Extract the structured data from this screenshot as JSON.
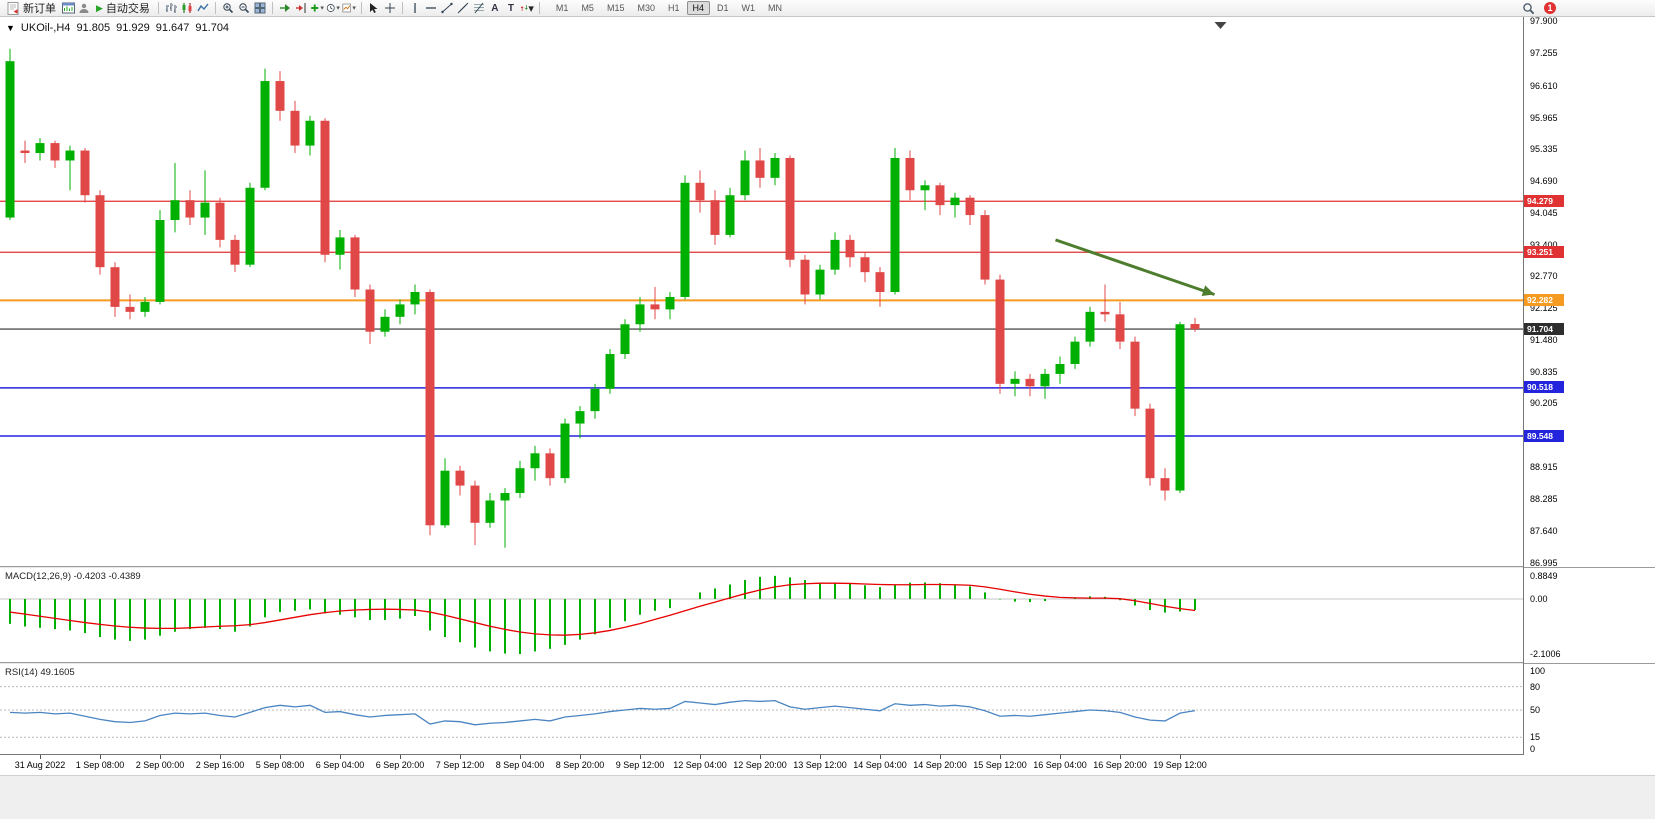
{
  "toolbar": {
    "new_order": "新订单",
    "autotrading": "自动交易",
    "timeframes": [
      "M1",
      "M5",
      "M15",
      "M30",
      "H1",
      "H4",
      "D1",
      "W1",
      "MN"
    ],
    "active_timeframe": "H4",
    "notification_count": "1",
    "text_tool": "A",
    "label_tool": "T"
  },
  "icons": {
    "caret": "▾",
    "title_caret": "▼",
    "autotrading_play": "▶"
  },
  "chart": {
    "symbol_period": "UKOil-,H4",
    "quote": {
      "open": "91.805",
      "high": "91.929",
      "low": "91.647",
      "close": "91.704"
    }
  },
  "colors": {
    "candle_up": "#00b000",
    "candle_down": "#e04848",
    "chart_bg": "#ffffff",
    "arrow": "#4e7d2e"
  },
  "chart_data": {
    "type": "candlestick",
    "symbol": "UKOil-",
    "timeframe": "H4",
    "last_quote": {
      "open": 91.805,
      "high": 91.929,
      "low": 91.647,
      "close": 91.704
    },
    "price_axis": {
      "min": 86.995,
      "max": 97.9,
      "ticks": [
        "97.900",
        "97.255",
        "96.610",
        "95.965",
        "95.335",
        "94.690",
        "94.045",
        "93.400",
        "92.770",
        "92.125",
        "91.480",
        "90.835",
        "90.205",
        "89.560",
        "88.915",
        "88.285",
        "87.640",
        "86.995"
      ]
    },
    "hlines": [
      {
        "price": 94.279,
        "label": "94.279",
        "color": "#e03232",
        "width": 1.3
      },
      {
        "price": 93.251,
        "label": "93.251",
        "color": "#e03232",
        "width": 1.3
      },
      {
        "price": 92.282,
        "label": "92.282",
        "color": "#f59b22",
        "width": 2
      },
      {
        "price": 91.704,
        "label": "91.704",
        "color": "#2e2e2e",
        "width": 1.1,
        "role": "last-price"
      },
      {
        "price": 90.518,
        "label": "90.518",
        "color": "#2424dd",
        "width": 1.5
      },
      {
        "price": 89.548,
        "label": "89.548",
        "color": "#2424dd",
        "width": 1.5
      }
    ],
    "annotation_arrow": {
      "from_bar": 69.7,
      "from_price": 93.5,
      "to_bar": 80.3,
      "to_price": 92.4,
      "color": "#4e7d2e"
    },
    "shift_marker": {
      "bar": 80.7
    },
    "time_axis": {
      "first_bar": 2,
      "bar_step": 4,
      "labels": [
        "31 Aug 2022",
        "1 Sep 08:00",
        "2 Sep 00:00",
        "2 Sep 16:00",
        "5 Sep 08:00",
        "6 Sep 04:00",
        "6 Sep 20:00",
        "7 Sep 12:00",
        "8 Sep 04:00",
        "8 Sep 20:00",
        "9 Sep 12:00",
        "12 Sep 04:00",
        "12 Sep 20:00",
        "13 Sep 12:00",
        "14 Sep 04:00",
        "14 Sep 20:00",
        "15 Sep 12:00",
        "16 Sep 04:00",
        "16 Sep 20:00",
        "19 Sep 12:00"
      ]
    },
    "candles": [
      [
        93.95,
        97.35,
        93.9,
        97.1
      ],
      [
        95.3,
        95.5,
        95.05,
        95.25
      ],
      [
        95.25,
        95.55,
        95.1,
        95.45
      ],
      [
        95.45,
        95.5,
        94.95,
        95.1
      ],
      [
        95.1,
        95.4,
        94.5,
        95.3
      ],
      [
        95.3,
        95.35,
        94.25,
        94.4
      ],
      [
        94.4,
        94.5,
        92.8,
        92.95
      ],
      [
        92.95,
        93.05,
        91.95,
        92.15
      ],
      [
        92.15,
        92.4,
        91.9,
        92.05
      ],
      [
        92.05,
        92.35,
        91.95,
        92.25
      ],
      [
        92.25,
        94.1,
        92.2,
        93.9
      ],
      [
        93.9,
        95.05,
        93.65,
        94.3
      ],
      [
        94.3,
        94.5,
        93.8,
        93.95
      ],
      [
        93.95,
        94.9,
        93.6,
        94.25
      ],
      [
        94.25,
        94.35,
        93.35,
        93.5
      ],
      [
        93.5,
        93.6,
        92.85,
        93.0
      ],
      [
        93.0,
        94.65,
        92.95,
        94.55
      ],
      [
        94.55,
        96.95,
        94.5,
        96.7
      ],
      [
        96.7,
        96.9,
        95.9,
        96.1
      ],
      [
        96.1,
        96.3,
        95.25,
        95.4
      ],
      [
        95.4,
        96.0,
        95.2,
        95.9
      ],
      [
        95.9,
        95.95,
        93.05,
        93.2
      ],
      [
        93.2,
        93.7,
        92.9,
        93.55
      ],
      [
        93.55,
        93.6,
        92.35,
        92.5
      ],
      [
        92.5,
        92.6,
        91.4,
        91.65
      ],
      [
        91.65,
        92.1,
        91.55,
        91.95
      ],
      [
        91.95,
        92.3,
        91.8,
        92.2
      ],
      [
        92.2,
        92.6,
        92.0,
        92.45
      ],
      [
        92.45,
        92.5,
        87.55,
        87.75
      ],
      [
        87.75,
        89.1,
        87.7,
        88.85
      ],
      [
        88.85,
        88.95,
        88.35,
        88.55
      ],
      [
        88.55,
        88.65,
        87.35,
        87.8
      ],
      [
        87.8,
        88.4,
        87.7,
        88.25
      ],
      [
        88.25,
        88.5,
        87.3,
        88.4
      ],
      [
        88.4,
        89.05,
        88.3,
        88.9
      ],
      [
        88.9,
        89.35,
        88.65,
        89.2
      ],
      [
        89.2,
        89.3,
        88.55,
        88.7
      ],
      [
        88.7,
        89.9,
        88.6,
        89.8
      ],
      [
        89.8,
        90.15,
        89.5,
        90.05
      ],
      [
        90.05,
        90.6,
        89.9,
        90.5
      ],
      [
        90.5,
        91.3,
        90.4,
        91.2
      ],
      [
        91.2,
        91.9,
        91.1,
        91.8
      ],
      [
        91.8,
        92.35,
        91.65,
        92.2
      ],
      [
        92.2,
        92.55,
        91.9,
        92.1
      ],
      [
        92.1,
        92.45,
        91.9,
        92.35
      ],
      [
        92.35,
        94.8,
        92.3,
        94.65
      ],
      [
        94.65,
        94.9,
        94.05,
        94.3
      ],
      [
        94.3,
        94.5,
        93.4,
        93.6
      ],
      [
        93.6,
        94.55,
        93.55,
        94.4
      ],
      [
        94.4,
        95.3,
        94.3,
        95.1
      ],
      [
        95.1,
        95.35,
        94.55,
        94.75
      ],
      [
        94.75,
        95.25,
        94.6,
        95.15
      ],
      [
        95.15,
        95.2,
        92.95,
        93.1
      ],
      [
        93.1,
        93.2,
        92.2,
        92.4
      ],
      [
        92.4,
        93.0,
        92.3,
        92.9
      ],
      [
        92.9,
        93.65,
        92.8,
        93.5
      ],
      [
        93.5,
        93.6,
        92.95,
        93.15
      ],
      [
        93.15,
        93.25,
        92.65,
        92.85
      ],
      [
        92.85,
        92.95,
        92.15,
        92.45
      ],
      [
        92.45,
        95.35,
        92.4,
        95.15
      ],
      [
        95.15,
        95.3,
        94.3,
        94.5
      ],
      [
        94.5,
        94.7,
        94.1,
        94.6
      ],
      [
        94.6,
        94.65,
        94.0,
        94.2
      ],
      [
        94.2,
        94.45,
        93.95,
        94.35
      ],
      [
        94.35,
        94.4,
        93.8,
        94.0
      ],
      [
        94.0,
        94.1,
        92.6,
        92.7
      ],
      [
        92.7,
        92.8,
        90.4,
        90.6
      ],
      [
        90.6,
        90.85,
        90.35,
        90.7
      ],
      [
        90.7,
        90.8,
        90.35,
        90.55
      ],
      [
        90.55,
        90.9,
        90.3,
        90.8
      ],
      [
        90.8,
        91.15,
        90.6,
        91.0
      ],
      [
        91.0,
        91.55,
        90.9,
        91.45
      ],
      [
        91.45,
        92.15,
        91.35,
        92.05
      ],
      [
        92.05,
        92.6,
        91.85,
        92.0
      ],
      [
        92.0,
        92.25,
        91.3,
        91.45
      ],
      [
        91.45,
        91.55,
        89.95,
        90.1
      ],
      [
        90.1,
        90.2,
        88.55,
        88.7
      ],
      [
        88.7,
        88.9,
        88.25,
        88.45
      ],
      [
        88.45,
        91.85,
        88.4,
        91.8
      ],
      [
        91.805,
        91.929,
        91.647,
        91.704
      ]
    ],
    "indicators": [
      {
        "name": "MACD",
        "label": "MACD(12,26,9) -0.4203 -0.4389",
        "scale": [
          "0.8849",
          "0.00",
          "-2.1006"
        ],
        "histogram_color": "#00b000",
        "signal_color": "#e80000",
        "histogram": [
          -0.95,
          -1.05,
          -1.1,
          -1.15,
          -1.2,
          -1.3,
          -1.45,
          -1.55,
          -1.6,
          -1.55,
          -1.4,
          -1.25,
          -1.15,
          -1.1,
          -1.15,
          -1.25,
          -1.05,
          -0.7,
          -0.5,
          -0.45,
          -0.4,
          -0.55,
          -0.6,
          -0.7,
          -0.8,
          -0.8,
          -0.75,
          -0.65,
          -1.2,
          -1.45,
          -1.65,
          -1.85,
          -2.0,
          -2.08,
          -2.1,
          -2.0,
          -1.9,
          -1.75,
          -1.55,
          -1.35,
          -1.1,
          -0.85,
          -0.6,
          -0.45,
          -0.35,
          0.0,
          0.25,
          0.4,
          0.55,
          0.72,
          0.84,
          0.88,
          0.82,
          0.72,
          0.62,
          0.6,
          0.58,
          0.52,
          0.45,
          0.55,
          0.62,
          0.63,
          0.6,
          0.55,
          0.48,
          0.25,
          -0.02,
          -0.1,
          -0.12,
          -0.08,
          0.0,
          0.06,
          0.1,
          0.08,
          -0.05,
          -0.25,
          -0.42,
          -0.52,
          -0.48,
          -0.42
        ],
        "signal": [
          -0.5,
          -0.58,
          -0.66,
          -0.74,
          -0.82,
          -0.9,
          -0.97,
          -1.03,
          -1.08,
          -1.11,
          -1.12,
          -1.12,
          -1.1,
          -1.07,
          -1.04,
          -1.02,
          -0.98,
          -0.9,
          -0.8,
          -0.7,
          -0.6,
          -0.52,
          -0.46,
          -0.42,
          -0.4,
          -0.39,
          -0.4,
          -0.42,
          -0.5,
          -0.62,
          -0.76,
          -0.9,
          -1.04,
          -1.16,
          -1.26,
          -1.33,
          -1.37,
          -1.38,
          -1.35,
          -1.29,
          -1.2,
          -1.08,
          -0.94,
          -0.78,
          -0.62,
          -0.45,
          -0.28,
          -0.12,
          0.04,
          0.2,
          0.34,
          0.46,
          0.54,
          0.58,
          0.6,
          0.6,
          0.59,
          0.57,
          0.55,
          0.54,
          0.54,
          0.55,
          0.55,
          0.54,
          0.52,
          0.46,
          0.37,
          0.27,
          0.18,
          0.11,
          0.06,
          0.04,
          0.03,
          0.03,
          0.01,
          -0.07,
          -0.17,
          -0.28,
          -0.37,
          -0.44
        ]
      },
      {
        "name": "RSI",
        "label": "RSI(14) 49.1605",
        "scale": [
          "100",
          "80",
          "50",
          "15",
          "0"
        ],
        "levels": [
          80,
          50,
          15
        ],
        "color": "#4a85c2",
        "values": [
          47,
          46,
          47,
          45,
          46,
          42,
          38,
          35,
          34,
          36,
          43,
          46,
          45,
          46,
          43,
          41,
          47,
          53,
          56,
          54,
          56,
          47,
          48,
          44,
          41,
          43,
          44,
          45,
          32,
          36,
          35,
          31,
          33,
          34,
          36,
          38,
          36,
          41,
          43,
          45,
          48,
          50,
          52,
          51,
          52,
          61,
          59,
          57,
          60,
          62,
          61,
          62,
          54,
          51,
          53,
          55,
          53,
          51,
          49,
          58,
          56,
          57,
          55,
          56,
          54,
          49,
          42,
          43,
          42,
          44,
          46,
          48,
          50,
          49,
          47,
          41,
          37,
          36,
          46,
          49.16
        ]
      }
    ]
  }
}
